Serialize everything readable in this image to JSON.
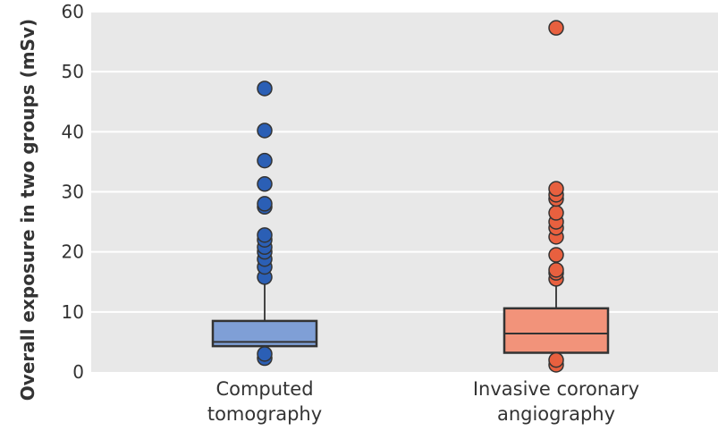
{
  "chart_data": {
    "type": "box",
    "ylabel": "Overall exposure in two groups (mSv)",
    "ylim": [
      0,
      60
    ],
    "yticks": [
      0,
      10,
      20,
      30,
      40,
      50,
      60
    ],
    "grid": "horizontal",
    "background_color": "#e8e8e8",
    "series": [
      {
        "category_lines": [
          "Computed",
          "tomography"
        ],
        "color": "#7f9fd6",
        "outlier_color": "#2b5fb5",
        "whisker_low": 2.5,
        "q1": 4.3,
        "median": 5.0,
        "q3": 8.5,
        "whisker_high": 15.5,
        "outliers": [
          2.3,
          3.0,
          15.8,
          17.5,
          18.8,
          20.0,
          20.8,
          22.0,
          22.8,
          27.5,
          28.0,
          31.3,
          35.2,
          40.2,
          47.2
        ]
      },
      {
        "category_lines": [
          "Invasive coronary",
          "angiography"
        ],
        "color": "#f2937a",
        "outlier_color": "#e8603f",
        "whisker_low": 1.0,
        "q1": 3.2,
        "median": 6.4,
        "q3": 10.6,
        "whisker_high": 15.0,
        "outliers": [
          1.2,
          2.0,
          15.5,
          16.5,
          17.0,
          19.5,
          22.5,
          24.0,
          25.0,
          26.5,
          28.8,
          29.5,
          30.5,
          57.3
        ]
      }
    ]
  }
}
